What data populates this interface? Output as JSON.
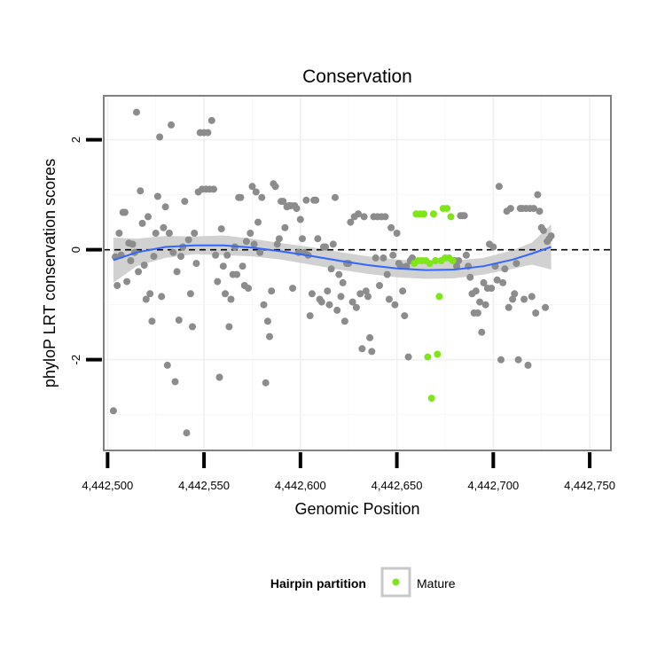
{
  "chart_data": {
    "type": "scatter",
    "title": "Conservation",
    "xlabel": "Genomic Position",
    "ylabel": "phyloP LRT conservation scores",
    "xlim": [
      4442498,
      4442761
    ],
    "ylim": [
      -3.65,
      2.8
    ],
    "x_ticks": [
      4442500,
      4442550,
      4442600,
      4442650,
      4442700,
      4442750
    ],
    "x_tick_labels": [
      "4,442,500",
      "4,442,550",
      "4,442,600",
      "4,442,650",
      "4,442,700",
      "4,442,750"
    ],
    "y_ticks": [
      -2,
      0,
      2
    ],
    "y_tick_labels": [
      "-2",
      "0",
      "2"
    ],
    "grid": true,
    "reference_line": {
      "y": 0,
      "style": "dashed"
    },
    "legend": {
      "title": "Hairpin partition",
      "entries": [
        {
          "label": "Mature",
          "color": "#7fe61a"
        }
      ],
      "placement": "bottom"
    },
    "colors": {
      "other": "#8c8c8c",
      "mature": "#7fe61a",
      "smooth": "#3366ff",
      "band": "#c9c9c9",
      "panel_border": "#808080"
    },
    "series": [
      {
        "name": "Other",
        "points": [
          [
            4442503,
            -2.93
          ],
          [
            4442504,
            -0.13
          ],
          [
            4442505,
            -0.65
          ],
          [
            4442506,
            0.3
          ],
          [
            4442507,
            -0.1
          ],
          [
            4442508,
            0.68
          ],
          [
            4442509,
            0.68
          ],
          [
            4442510,
            -0.58
          ],
          [
            4442511,
            0.12
          ],
          [
            4442512,
            -0.2
          ],
          [
            4442513,
            0.1
          ],
          [
            4442514,
            -0.05
          ],
          [
            4442515,
            2.5
          ],
          [
            4442516,
            -0.4
          ],
          [
            4442517,
            1.07
          ],
          [
            4442518,
            0.48
          ],
          [
            4442519,
            -0.28
          ],
          [
            4442520,
            -0.9
          ],
          [
            4442521,
            0.6
          ],
          [
            4442522,
            -0.8
          ],
          [
            4442523,
            -1.3
          ],
          [
            4442524,
            -0.12
          ],
          [
            4442525,
            0.3
          ],
          [
            4442526,
            0.97
          ],
          [
            4442527,
            2.05
          ],
          [
            4442528,
            -0.85
          ],
          [
            4442529,
            0.4
          ],
          [
            4442530,
            0.78
          ],
          [
            4442531,
            -2.1
          ],
          [
            4442532,
            0.3
          ],
          [
            4442533,
            2.27
          ],
          [
            4442534,
            -0.05
          ],
          [
            4442535,
            -2.4
          ],
          [
            4442536,
            -0.4
          ],
          [
            4442537,
            -1.28
          ],
          [
            4442538,
            -0.12
          ],
          [
            4442539,
            0.05
          ],
          [
            4442540,
            0.88
          ],
          [
            4442541,
            -3.33
          ],
          [
            4442542,
            0.18
          ],
          [
            4442543,
            -0.8
          ],
          [
            4442544,
            -1.4
          ],
          [
            4442545,
            0.3
          ],
          [
            4442546,
            -0.25
          ],
          [
            4442547,
            1.05
          ],
          [
            4442548,
            2.13
          ],
          [
            4442549,
            1.1
          ],
          [
            4442550,
            2.13
          ],
          [
            4442551,
            1.1
          ],
          [
            4442552,
            2.13
          ],
          [
            4442553,
            1.1
          ],
          [
            4442554,
            2.35
          ],
          [
            4442555,
            1.1
          ],
          [
            4442556,
            -0.1
          ],
          [
            4442557,
            -0.58
          ],
          [
            4442558,
            -2.32
          ],
          [
            4442559,
            0.38
          ],
          [
            4442560,
            -0.3
          ],
          [
            4442561,
            -0.8
          ],
          [
            4442562,
            -0.1
          ],
          [
            4442563,
            -1.4
          ],
          [
            4442564,
            -0.9
          ],
          [
            4442565,
            -0.45
          ],
          [
            4442566,
            0.05
          ],
          [
            4442567,
            -0.45
          ],
          [
            4442568,
            0.95
          ],
          [
            4442569,
            0.95
          ],
          [
            4442570,
            -0.3
          ],
          [
            4442571,
            -0.65
          ],
          [
            4442572,
            0.15
          ],
          [
            4442573,
            -0.7
          ],
          [
            4442574,
            0.3
          ],
          [
            4442575,
            1.15
          ],
          [
            4442576,
            0.1
          ],
          [
            4442577,
            1.05
          ],
          [
            4442578,
            0.5
          ],
          [
            4442579,
            -0.05
          ],
          [
            4442580,
            0.95
          ],
          [
            4442581,
            -1.0
          ],
          [
            4442582,
            -2.42
          ],
          [
            4442583,
            -1.3
          ],
          [
            4442584,
            -1.58
          ],
          [
            4442585,
            -0.75
          ],
          [
            4442586,
            1.2
          ],
          [
            4442587,
            1.15
          ],
          [
            4442588,
            0.1
          ],
          [
            4442589,
            0.2
          ],
          [
            4442590,
            0.88
          ],
          [
            4442591,
            0.88
          ],
          [
            4442592,
            0.4
          ],
          [
            4442593,
            0.78
          ],
          [
            4442594,
            0.8
          ],
          [
            4442595,
            0.8
          ],
          [
            4442596,
            -0.7
          ],
          [
            4442597,
            0.8
          ],
          [
            4442598,
            0.75
          ],
          [
            4442599,
            -0.05
          ],
          [
            4442600,
            0.55
          ],
          [
            4442601,
            0.2
          ],
          [
            4442602,
            -0.05
          ],
          [
            4442603,
            0.9
          ],
          [
            4442604,
            -0.1
          ],
          [
            4442605,
            -1.2
          ],
          [
            4442606,
            -0.8
          ],
          [
            4442607,
            0.9
          ],
          [
            4442608,
            0.9
          ],
          [
            4442609,
            0.2
          ],
          [
            4442610,
            -0.9
          ],
          [
            4442611,
            -0.95
          ],
          [
            4442612,
            0.05
          ],
          [
            4442613,
            0.05
          ],
          [
            4442614,
            -0.75
          ],
          [
            4442615,
            -1.0
          ],
          [
            4442616,
            -0.35
          ],
          [
            4442617,
            0.1
          ],
          [
            4442618,
            0.95
          ],
          [
            4442619,
            -1.1
          ],
          [
            4442620,
            -0.45
          ],
          [
            4442621,
            -0.85
          ],
          [
            4442622,
            -0.6
          ],
          [
            4442623,
            -1.3
          ],
          [
            4442624,
            -0.25
          ],
          [
            4442625,
            -0.25
          ],
          [
            4442626,
            0.5
          ],
          [
            4442627,
            -0.95
          ],
          [
            4442628,
            0.6
          ],
          [
            4442629,
            -1.05
          ],
          [
            4442630,
            0.65
          ],
          [
            4442631,
            -0.8
          ],
          [
            4442632,
            -1.8
          ],
          [
            4442633,
            0.6
          ],
          [
            4442634,
            -0.75
          ],
          [
            4442635,
            -0.85
          ],
          [
            4442636,
            -1.6
          ],
          [
            4442637,
            -1.85
          ],
          [
            4442638,
            0.6
          ],
          [
            4442639,
            -0.15
          ],
          [
            4442640,
            0.6
          ],
          [
            4442641,
            -0.65
          ],
          [
            4442642,
            0.6
          ],
          [
            4442643,
            -0.15
          ],
          [
            4442644,
            0.6
          ],
          [
            4442645,
            -0.45
          ],
          [
            4442646,
            -0.9
          ],
          [
            4442647,
            0.4
          ],
          [
            4442648,
            -0.1
          ],
          [
            4442649,
            -1.0
          ],
          [
            4442650,
            0.3
          ],
          [
            4442651,
            -0.25
          ],
          [
            4442652,
            -0.3
          ],
          [
            4442653,
            -0.75
          ],
          [
            4442654,
            -1.2
          ],
          [
            4442655,
            -0.3
          ],
          [
            4442656,
            -1.95
          ],
          [
            4442657,
            -0.2
          ],
          [
            4442658,
            -0.15
          ],
          [
            4442680,
            -0.2
          ],
          [
            4442681,
            -0.3
          ],
          [
            4442682,
            -0.2
          ],
          [
            4442683,
            0.62
          ],
          [
            4442684,
            0.62
          ],
          [
            4442685,
            0.62
          ],
          [
            4442686,
            -0.1
          ],
          [
            4442687,
            -0.3
          ],
          [
            4442688,
            -0.5
          ],
          [
            4442689,
            -0.8
          ],
          [
            4442690,
            -1.15
          ],
          [
            4442691,
            -0.75
          ],
          [
            4442692,
            -1.15
          ],
          [
            4442693,
            -0.95
          ],
          [
            4442694,
            -1.5
          ],
          [
            4442695,
            -0.6
          ],
          [
            4442696,
            -1.0
          ],
          [
            4442697,
            -0.7
          ],
          [
            4442698,
            0.1
          ],
          [
            4442699,
            -0.7
          ],
          [
            4442700,
            0.05
          ],
          [
            4442701,
            -0.3
          ],
          [
            4442702,
            -0.55
          ],
          [
            4442703,
            1.15
          ],
          [
            4442704,
            -2.0
          ],
          [
            4442705,
            -0.6
          ],
          [
            4442706,
            -0.35
          ],
          [
            4442707,
            0.7
          ],
          [
            4442708,
            -1.05
          ],
          [
            4442709,
            0.75
          ],
          [
            4442710,
            -0.9
          ],
          [
            4442711,
            -0.8
          ],
          [
            4442712,
            -0.25
          ],
          [
            4442713,
            -2.0
          ],
          [
            4442714,
            0.75
          ],
          [
            4442715,
            0.75
          ],
          [
            4442716,
            -0.9
          ],
          [
            4442717,
            0.75
          ],
          [
            4442718,
            -2.1
          ],
          [
            4442719,
            0.75
          ],
          [
            4442720,
            -0.85
          ],
          [
            4442721,
            0.75
          ],
          [
            4442722,
            -1.15
          ],
          [
            4442723,
            1.0
          ],
          [
            4442724,
            0.7
          ],
          [
            4442725,
            0.4
          ],
          [
            4442726,
            0.35
          ],
          [
            4442727,
            -1.05
          ],
          [
            4442728,
            0.15
          ],
          [
            4442729,
            0.2
          ],
          [
            4442730,
            0.25
          ]
        ]
      },
      {
        "name": "Mature",
        "points": [
          [
            4442659,
            -0.25
          ],
          [
            4442660,
            0.65
          ],
          [
            4442661,
            -0.2
          ],
          [
            4442662,
            0.65
          ],
          [
            4442663,
            -0.2
          ],
          [
            4442664,
            0.65
          ],
          [
            4442665,
            -0.2
          ],
          [
            4442666,
            -1.95
          ],
          [
            4442667,
            -0.25
          ],
          [
            4442668,
            -2.7
          ],
          [
            4442669,
            0.65
          ],
          [
            4442670,
            -0.2
          ],
          [
            4442671,
            -1.9
          ],
          [
            4442672,
            -0.85
          ],
          [
            4442673,
            -0.2
          ],
          [
            4442674,
            0.75
          ],
          [
            4442675,
            -0.15
          ],
          [
            4442676,
            0.75
          ],
          [
            4442677,
            -0.15
          ],
          [
            4442678,
            0.6
          ],
          [
            4442679,
            -0.2
          ]
        ]
      }
    ],
    "smooth": {
      "method": "loess",
      "x": [
        4442503,
        4442515,
        4442530,
        4442545,
        4442560,
        4442575,
        4442590,
        4442605,
        4442620,
        4442635,
        4442650,
        4442665,
        4442680,
        4442695,
        4442710,
        4442720,
        4442730
      ],
      "y": [
        -0.19,
        -0.05,
        0.05,
        0.08,
        0.08,
        0.04,
        -0.03,
        -0.11,
        -0.2,
        -0.28,
        -0.34,
        -0.37,
        -0.36,
        -0.3,
        -0.18,
        -0.07,
        0.05
      ],
      "band_lower": [
        -0.6,
        -0.3,
        -0.15,
        -0.08,
        -0.1,
        -0.12,
        -0.18,
        -0.27,
        -0.36,
        -0.44,
        -0.5,
        -0.53,
        -0.52,
        -0.45,
        -0.35,
        -0.27,
        -0.36
      ],
      "band_upper": [
        0.22,
        0.2,
        0.25,
        0.24,
        0.26,
        0.2,
        0.12,
        0.05,
        -0.04,
        -0.12,
        -0.18,
        -0.21,
        -0.2,
        -0.15,
        -0.01,
        0.13,
        0.46
      ]
    }
  }
}
